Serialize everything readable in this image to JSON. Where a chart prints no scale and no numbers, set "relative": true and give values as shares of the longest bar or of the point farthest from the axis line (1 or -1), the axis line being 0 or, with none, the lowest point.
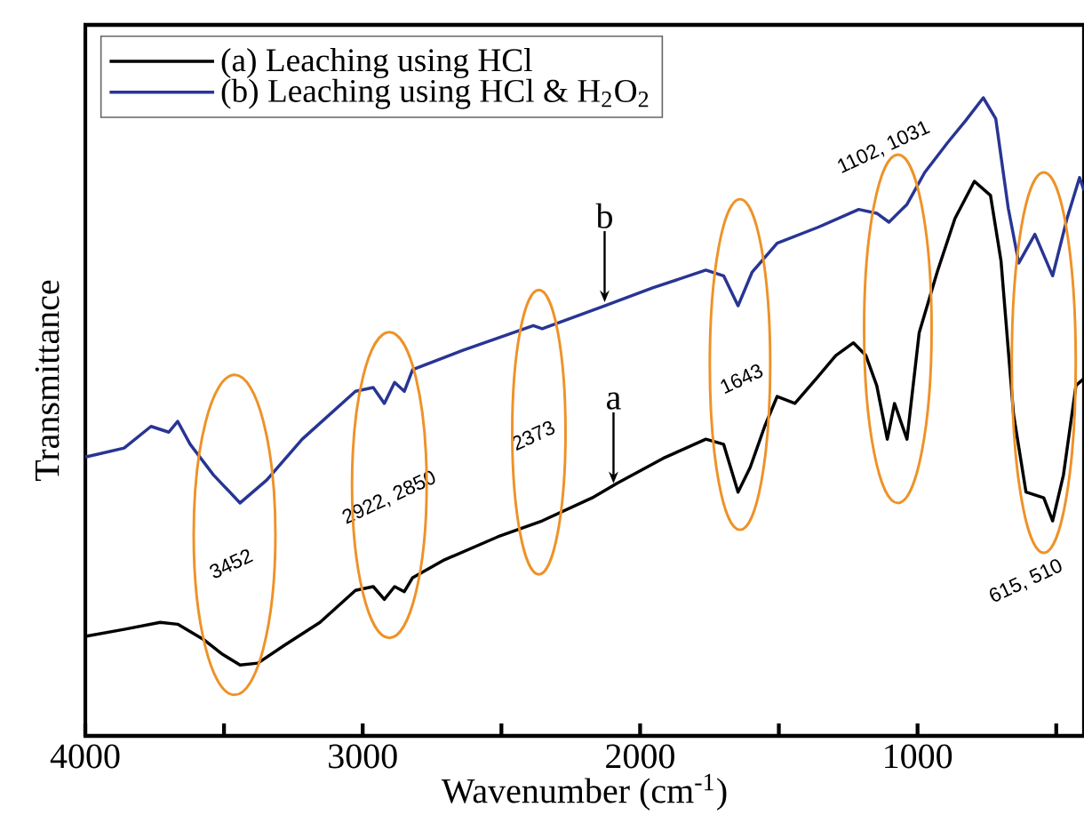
{
  "chart_data": {
    "type": "line",
    "relative": true,
    "xlabel": "Wavenumber (cm$^{-1}$)",
    "ylabel": "Transmittance",
    "xlim": [
      4000,
      400
    ],
    "xticks": [
      4000,
      {
        "value": 3500,
        "label": null
      },
      3000,
      {
        "value": 2500,
        "label": null
      },
      2000,
      {
        "value": 1500,
        "label": null
      },
      1000,
      {
        "value": 500,
        "label": null
      }
    ],
    "tick_labels": "x",
    "legend": "top left",
    "series": [
      {
        "name": "(a) Leaching using HCl",
        "color": "#000000",
        "x": [
          4000,
          3860,
          3730,
          3667,
          3570,
          3506,
          3442,
          3378,
          3282,
          3154,
          3026,
          2962,
          2922,
          2885,
          2850,
          2820,
          2705,
          2513,
          2353,
          2173,
          2083,
          1917,
          1763,
          1699,
          1647,
          1603,
          1551,
          1506,
          1442,
          1359,
          1295,
          1231,
          1186,
          1147,
          1109,
          1083,
          1038,
          994,
          929,
          865,
          795,
          737,
          699,
          654,
          609,
          545,
          513,
          474,
          429,
          400
        ],
        "values": [
          0.156,
          0.167,
          0.178,
          0.175,
          0.15,
          0.128,
          0.111,
          0.114,
          0.142,
          0.178,
          0.228,
          0.234,
          0.214,
          0.234,
          0.226,
          0.248,
          0.276,
          0.312,
          0.337,
          0.373,
          0.396,
          0.435,
          0.465,
          0.457,
          0.382,
          0.421,
          0.485,
          0.532,
          0.521,
          0.563,
          0.596,
          0.616,
          0.596,
          0.549,
          0.465,
          0.521,
          0.465,
          0.632,
          0.727,
          0.811,
          0.869,
          0.847,
          0.744,
          0.504,
          0.382,
          0.373,
          0.337,
          0.409,
          0.549,
          0.56
        ]
      },
      {
        "name": "(b) Leaching using HCl & H$_{2}$O$_{2}$",
        "color": "#283593",
        "x": [
          4000,
          3860,
          3763,
          3699,
          3667,
          3622,
          3538,
          3442,
          3346,
          3218,
          3026,
          2962,
          2922,
          2885,
          2850,
          2820,
          2641,
          2385,
          2353,
          2128,
          1955,
          1763,
          1699,
          1647,
          1596,
          1506,
          1359,
          1212,
          1147,
          1103,
          1038,
          974,
          891,
          827,
          763,
          718,
          673,
          635,
          577,
          513,
          461,
          416,
          400
        ],
        "values": [
          0.437,
          0.451,
          0.485,
          0.476,
          0.493,
          0.457,
          0.409,
          0.365,
          0.401,
          0.465,
          0.54,
          0.546,
          0.521,
          0.554,
          0.54,
          0.574,
          0.604,
          0.643,
          0.638,
          0.674,
          0.702,
          0.73,
          0.721,
          0.674,
          0.727,
          0.772,
          0.797,
          0.825,
          0.819,
          0.805,
          0.833,
          0.883,
          0.93,
          0.964,
          1.0,
          0.967,
          0.827,
          0.741,
          0.786,
          0.721,
          0.811,
          0.875,
          0.855
        ]
      }
    ],
    "annotations": [
      "3452",
      "2922, 2850",
      "2373",
      "1643",
      "1102, 1031",
      "615, 510",
      {
        "text": "b",
        "x": 2128,
        "y": 0.674
      },
      {
        "text": "a",
        "x": 2096,
        "y": 0.39
      }
    ]
  }
}
